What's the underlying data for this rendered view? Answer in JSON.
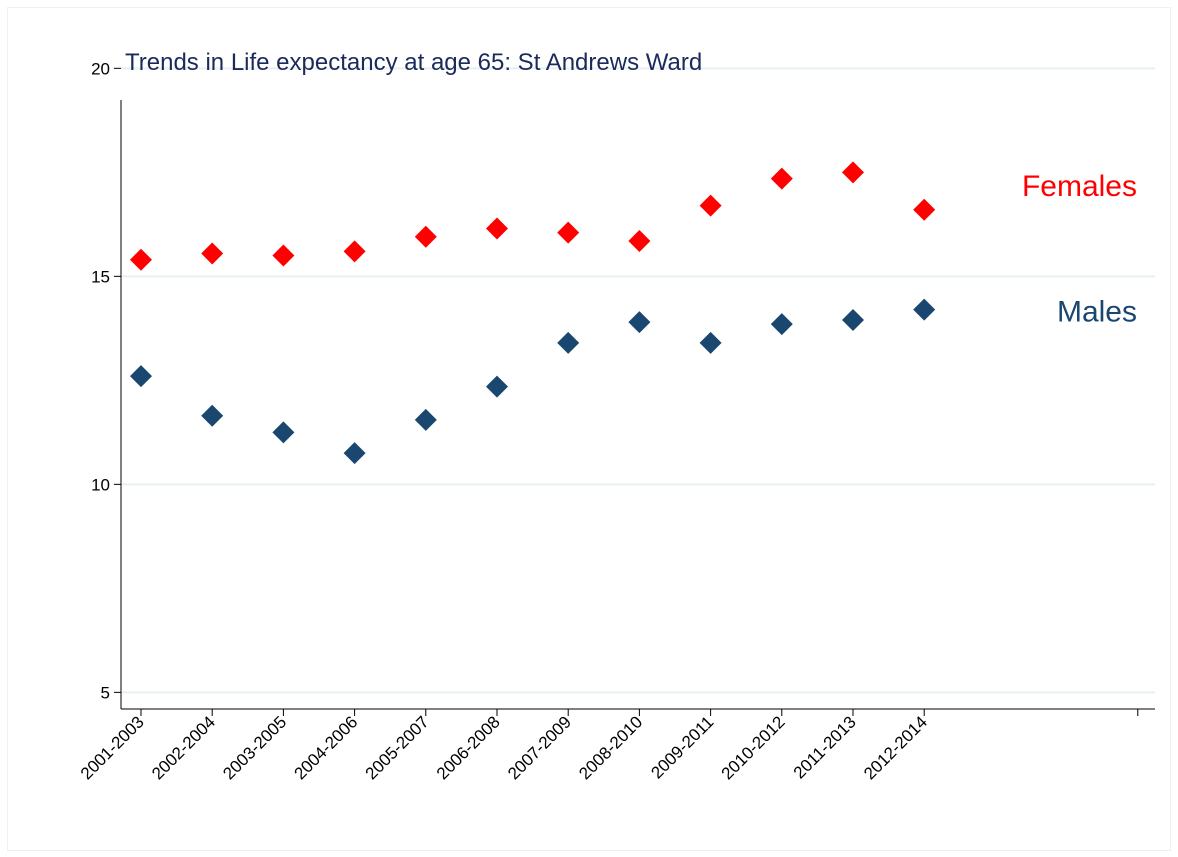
{
  "chart_data": {
    "type": "scatter",
    "title": "Trends in Life expectancy at age 65: St Andrews Ward",
    "xlabel": "",
    "ylabel": "",
    "categories": [
      "2001-2003",
      "2002-2004",
      "2003-2005",
      "2004-2006",
      "2005-2007",
      "2006-2008",
      "2007-2009",
      "2008-2010",
      "2009-2011",
      "2010-2012",
      "2011-2013",
      "2012-2014"
    ],
    "extra_x_slots": 3,
    "ylim": [
      4.6,
      20.2
    ],
    "yticks": [
      5,
      10,
      15,
      20
    ],
    "grid": true,
    "marker": "diamond",
    "series": [
      {
        "name": "Females",
        "color": "#ff0000",
        "values": [
          15.4,
          15.55,
          15.5,
          15.6,
          15.95,
          16.15,
          16.05,
          15.85,
          16.7,
          17.35,
          17.5,
          16.6
        ]
      },
      {
        "name": "Males",
        "color": "#1a476f",
        "values": [
          12.6,
          11.65,
          11.25,
          10.75,
          11.55,
          12.35,
          13.4,
          13.9,
          13.4,
          13.85,
          13.95,
          14.2
        ]
      }
    ],
    "colors": {
      "title": "#1a2a5a",
      "grid": "#e8eff2",
      "axis": "#000000"
    }
  }
}
